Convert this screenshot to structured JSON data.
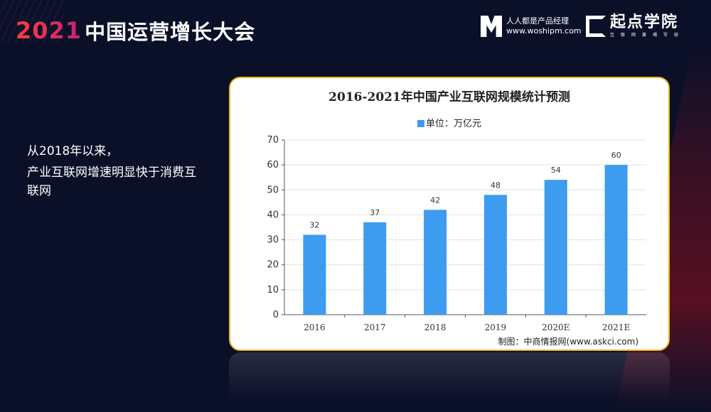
{
  "header": {
    "title_year": "2021",
    "title_rest": "中国运营增长大会",
    "logo1": {
      "name": "人人都是产品经理",
      "url": "www.woshipm.com"
    },
    "logo2": {
      "name": "起点学院",
      "tagline": "互联网黄埔军校"
    }
  },
  "side_text": [
    "从2018年以来，",
    "产业互联网增速明显快于消费互联网"
  ],
  "chart_data": {
    "type": "bar",
    "title": "2016-2021年中国产业互联网规模统计预测",
    "legend": "单位：万亿元",
    "categories": [
      "2016",
      "2017",
      "2018",
      "2019",
      "2020E",
      "2021E"
    ],
    "values": [
      32,
      37,
      42,
      48,
      54,
      60
    ],
    "ylim": [
      0,
      70
    ],
    "yticks": [
      0,
      10,
      20,
      30,
      40,
      50,
      60,
      70
    ],
    "grid": true,
    "legend_position": "top",
    "bar_color": "#3d9bf0",
    "source": "制图：中商情报网(www.askci.com)"
  }
}
